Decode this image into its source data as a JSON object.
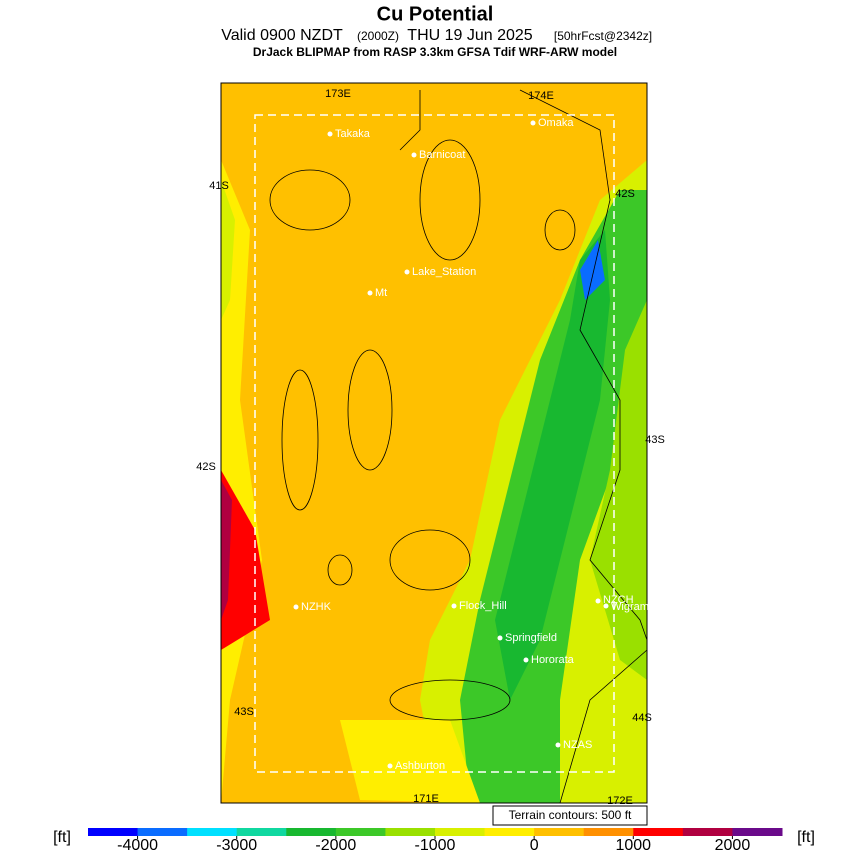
{
  "header": {
    "title": "Cu Potential",
    "valid": "Valid 0900 NZDT",
    "utc": "(2000Z)",
    "date": "THU 19 Jun 2025",
    "forecast": "[50hrFcst@2342z]",
    "subtitle": "DrJack BLIPMAP from RASP 3.3km GFSA Tdif WRF-ARW model"
  },
  "map": {
    "places": [
      "Takaka",
      "Barnicoat",
      "Omaka",
      "Lake_Station",
      "Mt",
      "NZHK",
      "Flock_Hill",
      "Springfield",
      "Hororata",
      "NZCH",
      "Wigram",
      "NZAS",
      "Ashburton"
    ],
    "graticule": [
      "173E",
      "174E",
      "41S",
      "42S",
      "42S",
      "43S",
      "43S",
      "44S",
      "171E",
      "172E"
    ],
    "note": "Terrain contours: 500 ft"
  },
  "colorbar": {
    "unit_left": "[ft]",
    "unit_right": "[ft]",
    "limits": [
      -4500,
      2500
    ],
    "ticks": [
      -4000,
      -3000,
      -2000,
      -1000,
      0,
      1000,
      2000
    ],
    "colors": [
      "#0000ff",
      "#0a6cff",
      "#00e0ff",
      "#10d8a0",
      "#18b830",
      "#3cc828",
      "#9ae000",
      "#d8f000",
      "#ffee00",
      "#ffc000",
      "#ff9000",
      "#ff0000",
      "#b00040",
      "#6a0a8a"
    ]
  }
}
